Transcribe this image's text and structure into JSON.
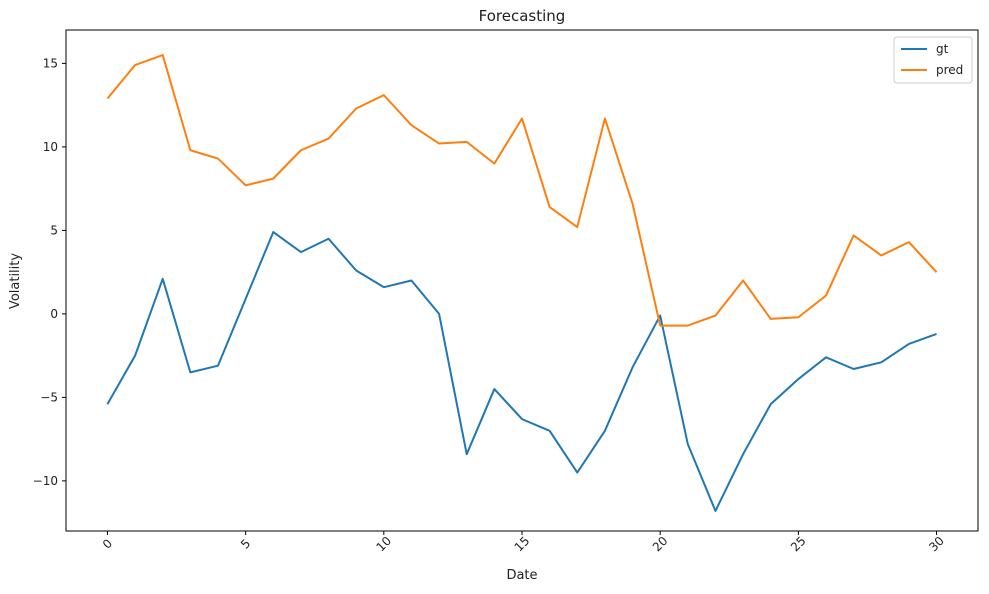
{
  "chart_data": {
    "type": "line",
    "title": "Forecasting",
    "xlabel": "Date",
    "ylabel": "Volatility",
    "xlim": [
      -1.5,
      31.5
    ],
    "ylim": [
      -13,
      17
    ],
    "xticks": [
      0,
      5,
      10,
      15,
      20,
      25,
      30
    ],
    "yticks": [
      -10,
      -5,
      0,
      5,
      10,
      15
    ],
    "ytick_labels": [
      "−10",
      "−5",
      "0",
      "5",
      "10",
      "15"
    ],
    "grid": false,
    "legend": "top-right",
    "x": [
      0,
      1,
      2,
      3,
      4,
      5,
      6,
      7,
      8,
      9,
      10,
      11,
      12,
      13,
      14,
      15,
      16,
      17,
      18,
      19,
      20,
      21,
      22,
      23,
      24,
      25,
      26,
      27,
      28,
      29,
      30
    ],
    "series": [
      {
        "name": "gt",
        "color": "#1f77b4",
        "values": [
          -5.4,
          -2.5,
          2.1,
          -3.5,
          -3.1,
          0.9,
          4.9,
          3.7,
          4.5,
          2.6,
          1.6,
          2.0,
          0.0,
          -8.4,
          -4.5,
          -6.3,
          -7.0,
          -9.5,
          -7.0,
          -3.2,
          -0.1,
          -7.8,
          -11.8,
          -8.4,
          -5.4,
          -3.9,
          -2.6,
          -3.3,
          -2.9,
          -1.8,
          -1.2
        ]
      },
      {
        "name": "pred",
        "color": "#ff7f0e",
        "values": [
          12.9,
          14.9,
          15.5,
          9.8,
          9.3,
          7.7,
          8.1,
          9.8,
          10.5,
          12.3,
          13.1,
          11.3,
          10.2,
          10.3,
          9.0,
          11.7,
          6.4,
          5.2,
          11.7,
          6.6,
          -0.7,
          -0.7,
          -0.1,
          2.0,
          -0.3,
          -0.2,
          1.1,
          4.7,
          3.5,
          4.3,
          2.5
        ]
      }
    ]
  }
}
